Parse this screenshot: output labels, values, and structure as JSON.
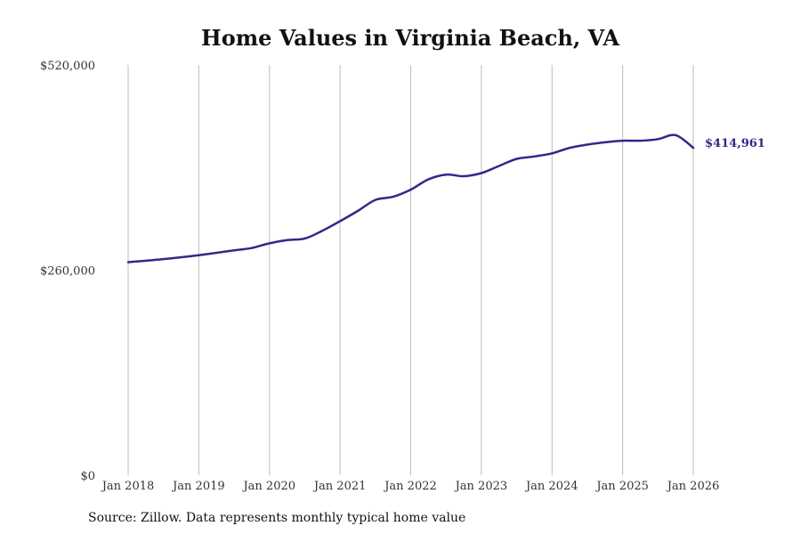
{
  "chart_data": {
    "type": "line",
    "title": "Home Values in Virginia Beach, VA",
    "source": "Source: Zillow. Data represents monthly typical home value",
    "xlabel": "",
    "ylabel": "",
    "ylim": [
      0,
      520000
    ],
    "y_ticks": [
      0,
      260000,
      520000
    ],
    "y_tick_labels": [
      "$0",
      "$260,000",
      "$520,000"
    ],
    "x_ticks": [
      2018,
      2019,
      2020,
      2021,
      2022,
      2023,
      2024,
      2025,
      2026
    ],
    "x_tick_labels": [
      "Jan 2018",
      "Jan 2019",
      "Jan 2020",
      "Jan 2021",
      "Jan 2022",
      "Jan 2023",
      "Jan 2024",
      "Jan 2025",
      "Jan 2026"
    ],
    "grid": "vertical",
    "line_color": "#2e2a8a",
    "series": [
      {
        "name": "Typical home value",
        "x": [
          2018.0,
          2018.5,
          2019.0,
          2019.5,
          2019.75,
          2020.0,
          2020.25,
          2020.5,
          2020.75,
          2021.0,
          2021.25,
          2021.5,
          2021.75,
          2022.0,
          2022.25,
          2022.5,
          2022.75,
          2023.0,
          2023.25,
          2023.5,
          2023.75,
          2024.0,
          2024.25,
          2024.5,
          2024.75,
          2025.0,
          2025.25,
          2025.5,
          2025.75,
          2026.0
        ],
        "values": [
          270000,
          274000,
          279000,
          285000,
          288000,
          294000,
          298000,
          300000,
          310000,
          322000,
          335000,
          349000,
          353000,
          362000,
          375000,
          381000,
          379000,
          383000,
          392000,
          401000,
          404000,
          408000,
          415000,
          419000,
          422000,
          424000,
          424000,
          426000,
          431000,
          414961
        ]
      }
    ],
    "end_label": "$414,961"
  }
}
